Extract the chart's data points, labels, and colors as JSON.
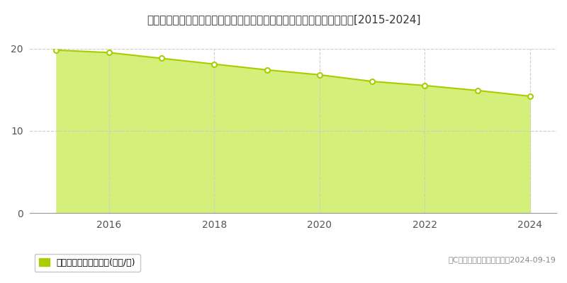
{
  "title": "広島県江田島市大柿町飛渡瀬字大新開２８９番１　基準地価　地価推移[2015-2024]",
  "years": [
    2015,
    2016,
    2017,
    2018,
    2019,
    2020,
    2021,
    2022,
    2023,
    2024
  ],
  "values": [
    19.8,
    19.5,
    18.8,
    18.1,
    17.4,
    16.8,
    16.0,
    15.5,
    14.9,
    14.2
  ],
  "line_color": "#aacc00",
  "fill_color": "#d4f07a",
  "marker_face_color": "#ffffff",
  "marker_edge_color": "#aacc00",
  "grid_color": "#cccccc",
  "background_color": "#ffffff",
  "legend_label": "基準地価　平均坪単価(万円/坪)",
  "legend_marker_color": "#aacc00",
  "copyright_text": "（C）土地価格ドットコム　2024-09-19",
  "ylim": [
    0,
    20
  ],
  "yticks": [
    0,
    10,
    20
  ],
  "xlim_left": 2014.5,
  "xlim_right": 2024.5,
  "title_fontsize": 11,
  "tick_fontsize": 10,
  "legend_fontsize": 9,
  "copyright_fontsize": 8
}
